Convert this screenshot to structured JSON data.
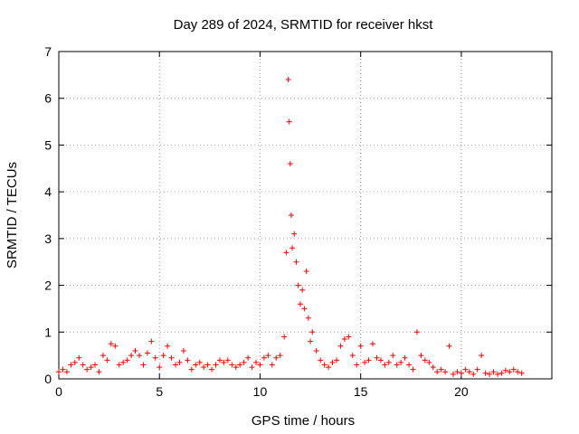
{
  "chart_data": {
    "type": "scatter",
    "title": "Day 289 of 2024, SRMTID for receiver hkst",
    "xlabel": "GPS time / hours",
    "ylabel": "SRMTID / TECUs",
    "xlim": [
      0,
      24.5
    ],
    "ylim": [
      0,
      7
    ],
    "xticks": [
      0,
      5,
      10,
      15,
      20
    ],
    "yticks": [
      0,
      1,
      2,
      3,
      4,
      5,
      6,
      7
    ],
    "grid": true,
    "marker": "+",
    "color": "#ff0000",
    "series": [
      {
        "name": "hkst",
        "x": [
          0.0,
          0.2,
          0.4,
          0.6,
          0.8,
          1.0,
          1.2,
          1.4,
          1.6,
          1.8,
          2.0,
          2.2,
          2.4,
          2.6,
          2.8,
          3.0,
          3.2,
          3.4,
          3.6,
          3.8,
          4.0,
          4.2,
          4.4,
          4.6,
          4.8,
          5.0,
          5.2,
          5.4,
          5.6,
          5.8,
          6.0,
          6.2,
          6.4,
          6.6,
          6.8,
          7.0,
          7.2,
          7.4,
          7.6,
          7.8,
          8.0,
          8.2,
          8.4,
          8.6,
          8.8,
          9.0,
          9.2,
          9.4,
          9.6,
          9.8,
          10.0,
          10.2,
          10.4,
          10.6,
          10.8,
          11.0,
          11.2,
          11.3,
          11.4,
          11.45,
          11.5,
          11.55,
          11.6,
          11.7,
          11.8,
          11.9,
          12.0,
          12.1,
          12.2,
          12.3,
          12.4,
          12.5,
          12.6,
          12.8,
          13.0,
          13.2,
          13.4,
          13.6,
          13.8,
          14.0,
          14.2,
          14.4,
          14.6,
          14.8,
          15.0,
          15.2,
          15.4,
          15.6,
          15.8,
          16.0,
          16.2,
          16.4,
          16.6,
          16.8,
          17.0,
          17.2,
          17.4,
          17.6,
          17.8,
          18.0,
          18.2,
          18.4,
          18.6,
          18.8,
          19.0,
          19.2,
          19.4,
          19.6,
          19.8,
          20.0,
          20.2,
          20.4,
          20.6,
          20.8,
          21.0,
          21.2,
          21.4,
          21.6,
          21.8,
          22.0,
          22.2,
          22.4,
          22.6,
          22.8,
          23.0
        ],
        "y": [
          0.15,
          0.2,
          0.15,
          0.3,
          0.35,
          0.45,
          0.3,
          0.2,
          0.25,
          0.3,
          0.15,
          0.5,
          0.4,
          0.75,
          0.7,
          0.3,
          0.35,
          0.4,
          0.5,
          0.6,
          0.5,
          0.3,
          0.55,
          0.8,
          0.45,
          0.25,
          0.5,
          0.7,
          0.45,
          0.3,
          0.35,
          0.6,
          0.4,
          0.2,
          0.3,
          0.35,
          0.25,
          0.3,
          0.2,
          0.3,
          0.4,
          0.35,
          0.4,
          0.3,
          0.25,
          0.3,
          0.35,
          0.45,
          0.25,
          0.35,
          0.3,
          0.45,
          0.5,
          0.3,
          0.45,
          0.5,
          0.9,
          2.7,
          6.4,
          5.5,
          4.6,
          3.5,
          2.8,
          3.1,
          2.5,
          2.0,
          1.6,
          1.9,
          1.5,
          2.3,
          1.3,
          0.8,
          1.0,
          0.6,
          0.4,
          0.3,
          0.25,
          0.35,
          0.4,
          0.7,
          0.85,
          0.9,
          0.5,
          0.3,
          0.7,
          0.35,
          0.4,
          0.75,
          0.45,
          0.4,
          0.3,
          0.35,
          0.5,
          0.3,
          0.35,
          0.45,
          0.3,
          0.2,
          1.0,
          0.5,
          0.4,
          0.35,
          0.25,
          0.15,
          0.2,
          0.15,
          0.7,
          0.1,
          0.15,
          0.12,
          0.2,
          0.15,
          0.1,
          0.2,
          0.5,
          0.12,
          0.1,
          0.15,
          0.1,
          0.12,
          0.18,
          0.15,
          0.2,
          0.15,
          0.12
        ]
      }
    ]
  }
}
